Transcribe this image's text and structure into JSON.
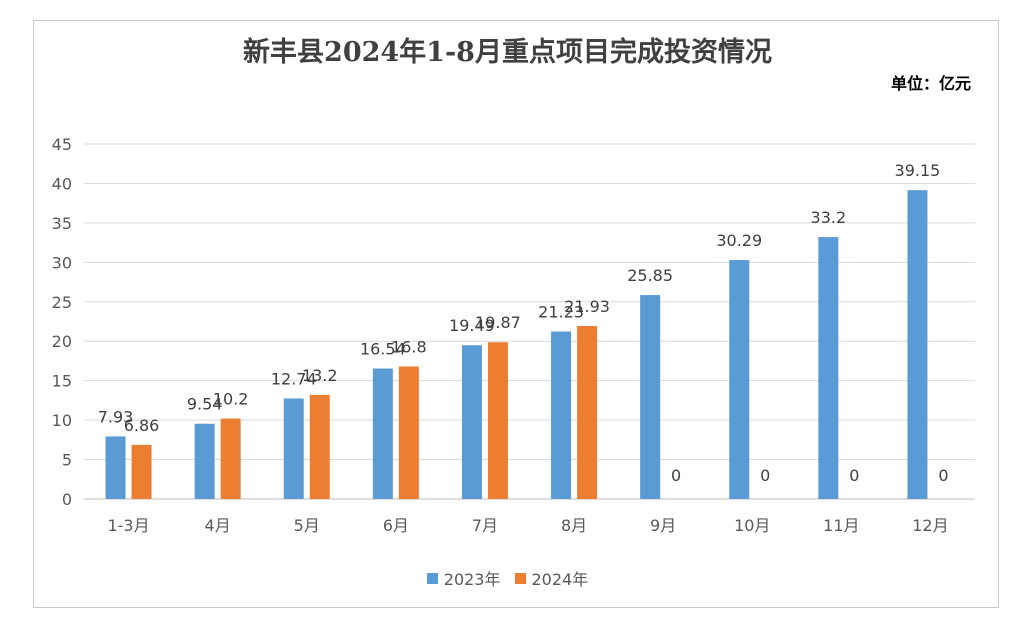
{
  "chart_data": {
    "type": "bar",
    "title": "新丰县2024年1-8月重点项目完成投资情况",
    "unit_label": "单位：亿元",
    "categories": [
      "1-3月",
      "4月",
      "5月",
      "6月",
      "7月",
      "8月",
      "9月",
      "10月",
      "11月",
      "12月"
    ],
    "series": [
      {
        "name": "2023年",
        "color": "#5b9bd5",
        "values": [
          7.93,
          9.54,
          12.74,
          16.54,
          19.49,
          21.23,
          25.85,
          30.29,
          33.2,
          39.15
        ]
      },
      {
        "name": "2024年",
        "color": "#ed7d31",
        "values": [
          6.86,
          10.2,
          13.2,
          16.8,
          19.87,
          21.93,
          0,
          0,
          0,
          0
        ]
      }
    ],
    "ylim": [
      0,
      45
    ],
    "yticks": [
      0,
      5,
      10,
      15,
      20,
      25,
      30,
      35,
      40,
      45
    ],
    "grid": true,
    "legend_position": "bottom"
  }
}
